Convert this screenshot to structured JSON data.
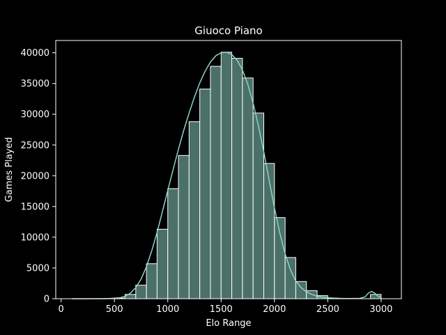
{
  "chart_data": {
    "type": "bar",
    "title": "Giuoco Piano",
    "xlabel": "Elo Range",
    "ylabel": "Games Played",
    "xlim": [
      -50,
      3190
    ],
    "ylim": [
      0,
      42000
    ],
    "xticks": [
      0,
      500,
      1000,
      1500,
      2000,
      2500,
      3000
    ],
    "yticks": [
      0,
      5000,
      10000,
      15000,
      20000,
      25000,
      30000,
      35000,
      40000
    ],
    "bin_width": 100,
    "bins": [
      {
        "x0": 100,
        "value": 0
      },
      {
        "x0": 200,
        "value": 0
      },
      {
        "x0": 300,
        "value": 0
      },
      {
        "x0": 400,
        "value": 50
      },
      {
        "x0": 500,
        "value": 100
      },
      {
        "x0": 600,
        "value": 700
      },
      {
        "x0": 700,
        "value": 2200
      },
      {
        "x0": 800,
        "value": 5700
      },
      {
        "x0": 900,
        "value": 11300
      },
      {
        "x0": 1000,
        "value": 17900
      },
      {
        "x0": 1100,
        "value": 23300
      },
      {
        "x0": 1200,
        "value": 28800
      },
      {
        "x0": 1300,
        "value": 34100
      },
      {
        "x0": 1400,
        "value": 37800
      },
      {
        "x0": 1500,
        "value": 40100
      },
      {
        "x0": 1600,
        "value": 39100
      },
      {
        "x0": 1700,
        "value": 35900
      },
      {
        "x0": 1800,
        "value": 30200
      },
      {
        "x0": 1900,
        "value": 22000
      },
      {
        "x0": 2000,
        "value": 13200
      },
      {
        "x0": 2100,
        "value": 6700
      },
      {
        "x0": 2200,
        "value": 2800
      },
      {
        "x0": 2300,
        "value": 1300
      },
      {
        "x0": 2400,
        "value": 500
      },
      {
        "x0": 2500,
        "value": 100
      },
      {
        "x0": 2600,
        "value": 50
      },
      {
        "x0": 2700,
        "value": 0
      },
      {
        "x0": 2800,
        "value": 0
      },
      {
        "x0": 2900,
        "value": 700
      }
    ],
    "kde": {
      "x": [
        100,
        300,
        450,
        550,
        600,
        650,
        700,
        750,
        800,
        850,
        900,
        950,
        1000,
        1050,
        1100,
        1150,
        1200,
        1250,
        1300,
        1350,
        1400,
        1450,
        1500,
        1550,
        1600,
        1650,
        1700,
        1750,
        1800,
        1850,
        1900,
        1950,
        2000,
        2050,
        2100,
        2150,
        2200,
        2250,
        2300,
        2350,
        2400,
        2450,
        2500,
        2600,
        2700,
        2800,
        2850,
        2880,
        2910,
        2940,
        2970,
        3000
      ],
      "y": [
        0,
        0,
        30,
        150,
        400,
        900,
        1800,
        3200,
        5200,
        7800,
        10800,
        14200,
        17600,
        21000,
        24300,
        27400,
        30200,
        32800,
        35100,
        37000,
        38500,
        39500,
        40000,
        40100,
        39700,
        38800,
        37200,
        34900,
        31800,
        28100,
        23900,
        19300,
        14800,
        10700,
        7300,
        4700,
        2900,
        1800,
        1100,
        700,
        400,
        250,
        150,
        60,
        30,
        60,
        300,
        900,
        1200,
        900,
        400,
        200
      ]
    },
    "colors": {
      "background": "#000000",
      "bar_fill": "#4b7068",
      "bar_edge": "#ffffff",
      "kde_line": "#8dd3c7",
      "axes": "#ffffff",
      "text": "#ffffff"
    }
  }
}
